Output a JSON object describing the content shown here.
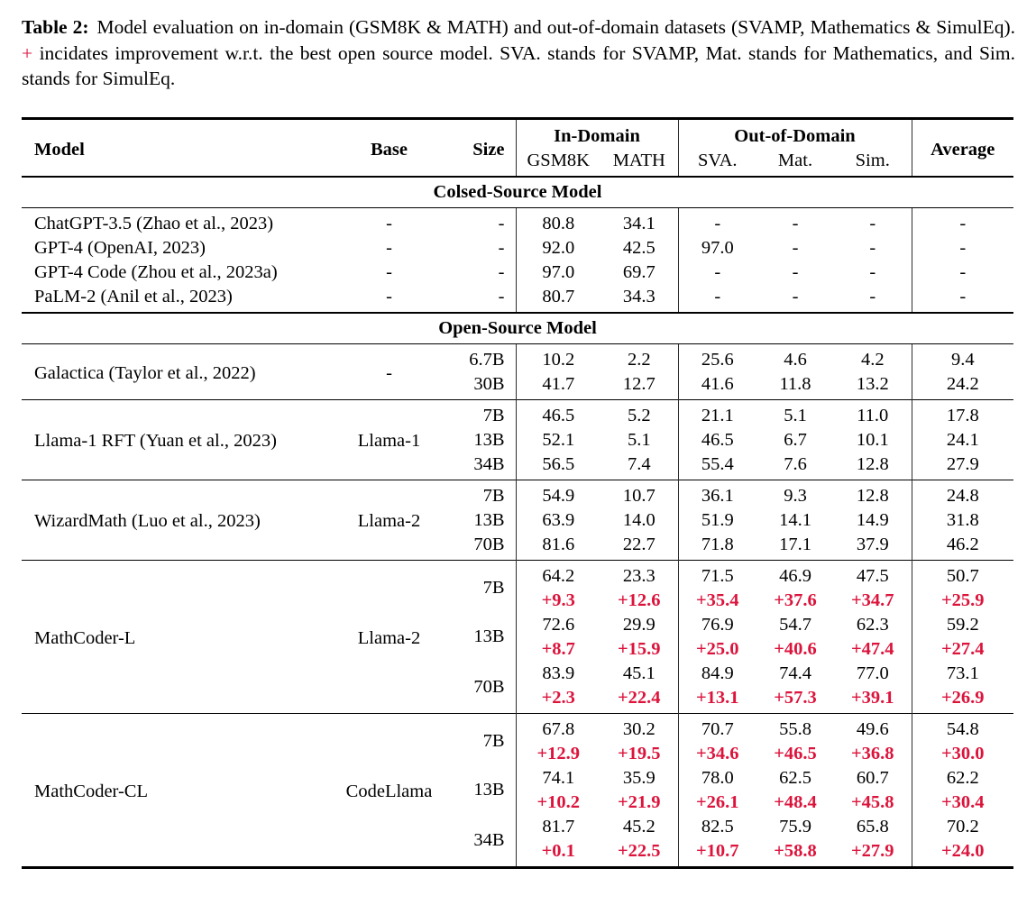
{
  "caption": {
    "label": "Table 2:",
    "before_plus": "Model evaluation on in-domain (GSM8K & MATH) and out-of-domain datasets (SVAMP, Mathematics & SimulEq).",
    "plus": "+",
    "after_plus": "incidates improvement w.r.t. the best open source model. SVA. stands for SVAMP, Mat. stands for Mathematics, and Sim. stands for SimulEq."
  },
  "colors": {
    "delta_red": "#dc143c",
    "text": "#000000",
    "rule": "#000000"
  },
  "table": {
    "header": {
      "model": "Model",
      "base": "Base",
      "size": "Size",
      "in_domain": "In-Domain",
      "out_domain": "Out-of-Domain",
      "average": "Average",
      "sub": [
        "GSM8K",
        "MATH",
        "SVA.",
        "Mat.",
        "Sim."
      ]
    },
    "sections": [
      {
        "title": "Colsed-Source Model",
        "blocks": [
          {
            "models": [
              {
                "model": "ChatGPT-3.5 (Zhao et al., 2023)",
                "base": "-",
                "rows": [
                  {
                    "size": "-",
                    "values": [
                      "80.8",
                      "34.1",
                      "-",
                      "-",
                      "-",
                      "-"
                    ]
                  }
                ]
              },
              {
                "model": "GPT-4 (OpenAI, 2023)",
                "base": "-",
                "rows": [
                  {
                    "size": "-",
                    "values": [
                      "92.0",
                      "42.5",
                      "97.0",
                      "-",
                      "-",
                      "-"
                    ]
                  }
                ]
              },
              {
                "model": "GPT-4 Code (Zhou et al., 2023a)",
                "base": "-",
                "rows": [
                  {
                    "size": "-",
                    "values": [
                      "97.0",
                      "69.7",
                      "-",
                      "-",
                      "-",
                      "-"
                    ]
                  }
                ]
              },
              {
                "model": "PaLM-2 (Anil et al., 2023)",
                "base": "-",
                "rows": [
                  {
                    "size": "-",
                    "values": [
                      "80.7",
                      "34.3",
                      "-",
                      "-",
                      "-",
                      "-"
                    ]
                  }
                ]
              }
            ]
          }
        ]
      },
      {
        "title": "Open-Source Model",
        "blocks": [
          {
            "models": [
              {
                "model": "Galactica (Taylor et al., 2022)",
                "base": "-",
                "rows": [
                  {
                    "size": "6.7B",
                    "values": [
                      "10.2",
                      "2.2",
                      "25.6",
                      "4.6",
                      "4.2",
                      "9.4"
                    ]
                  },
                  {
                    "size": "30B",
                    "values": [
                      "41.7",
                      "12.7",
                      "41.6",
                      "11.8",
                      "13.2",
                      "24.2"
                    ]
                  }
                ]
              }
            ]
          },
          {
            "models": [
              {
                "model": "Llama-1 RFT (Yuan et al., 2023)",
                "base": "Llama-1",
                "rows": [
                  {
                    "size": "7B",
                    "values": [
                      "46.5",
                      "5.2",
                      "21.1",
                      "5.1",
                      "11.0",
                      "17.8"
                    ]
                  },
                  {
                    "size": "13B",
                    "values": [
                      "52.1",
                      "5.1",
                      "46.5",
                      "6.7",
                      "10.1",
                      "24.1"
                    ]
                  },
                  {
                    "size": "34B",
                    "values": [
                      "56.5",
                      "7.4",
                      "55.4",
                      "7.6",
                      "12.8",
                      "27.9"
                    ]
                  }
                ]
              }
            ]
          },
          {
            "models": [
              {
                "model": "WizardMath (Luo et al., 2023)",
                "base": "Llama-2",
                "rows": [
                  {
                    "size": "7B",
                    "values": [
                      "54.9",
                      "10.7",
                      "36.1",
                      "9.3",
                      "12.8",
                      "24.8"
                    ]
                  },
                  {
                    "size": "13B",
                    "values": [
                      "63.9",
                      "14.0",
                      "51.9",
                      "14.1",
                      "14.9",
                      "31.8"
                    ]
                  },
                  {
                    "size": "70B",
                    "values": [
                      "81.6",
                      "22.7",
                      "71.8",
                      "17.1",
                      "37.9",
                      "46.2"
                    ]
                  }
                ]
              }
            ]
          },
          {
            "models": [
              {
                "model": "MathCoder-L",
                "base": "Llama-2",
                "rows": [
                  {
                    "size": "7B",
                    "values": [
                      "64.2",
                      "23.3",
                      "71.5",
                      "46.9",
                      "47.5",
                      "50.7"
                    ],
                    "delta": [
                      "+9.3",
                      "+12.6",
                      "+35.4",
                      "+37.6",
                      "+34.7",
                      "+25.9"
                    ]
                  },
                  {
                    "size": "13B",
                    "values": [
                      "72.6",
                      "29.9",
                      "76.9",
                      "54.7",
                      "62.3",
                      "59.2"
                    ],
                    "delta": [
                      "+8.7",
                      "+15.9",
                      "+25.0",
                      "+40.6",
                      "+47.4",
                      "+27.4"
                    ]
                  },
                  {
                    "size": "70B",
                    "values": [
                      "83.9",
                      "45.1",
                      "84.9",
                      "74.4",
                      "77.0",
                      "73.1"
                    ],
                    "delta": [
                      "+2.3",
                      "+22.4",
                      "+13.1",
                      "+57.3",
                      "+39.1",
                      "+26.9"
                    ]
                  }
                ]
              }
            ]
          },
          {
            "models": [
              {
                "model": "MathCoder-CL",
                "base": "CodeLlama",
                "rows": [
                  {
                    "size": "7B",
                    "values": [
                      "67.8",
                      "30.2",
                      "70.7",
                      "55.8",
                      "49.6",
                      "54.8"
                    ],
                    "delta": [
                      "+12.9",
                      "+19.5",
                      "+34.6",
                      "+46.5",
                      "+36.8",
                      "+30.0"
                    ]
                  },
                  {
                    "size": "13B",
                    "values": [
                      "74.1",
                      "35.9",
                      "78.0",
                      "62.5",
                      "60.7",
                      "62.2"
                    ],
                    "delta": [
                      "+10.2",
                      "+21.9",
                      "+26.1",
                      "+48.4",
                      "+45.8",
                      "+30.4"
                    ]
                  },
                  {
                    "size": "34B",
                    "values": [
                      "81.7",
                      "45.2",
                      "82.5",
                      "75.9",
                      "65.8",
                      "70.2"
                    ],
                    "delta": [
                      "+0.1",
                      "+22.5",
                      "+10.7",
                      "+58.8",
                      "+27.9",
                      "+24.0"
                    ]
                  }
                ]
              }
            ]
          }
        ]
      }
    ]
  }
}
